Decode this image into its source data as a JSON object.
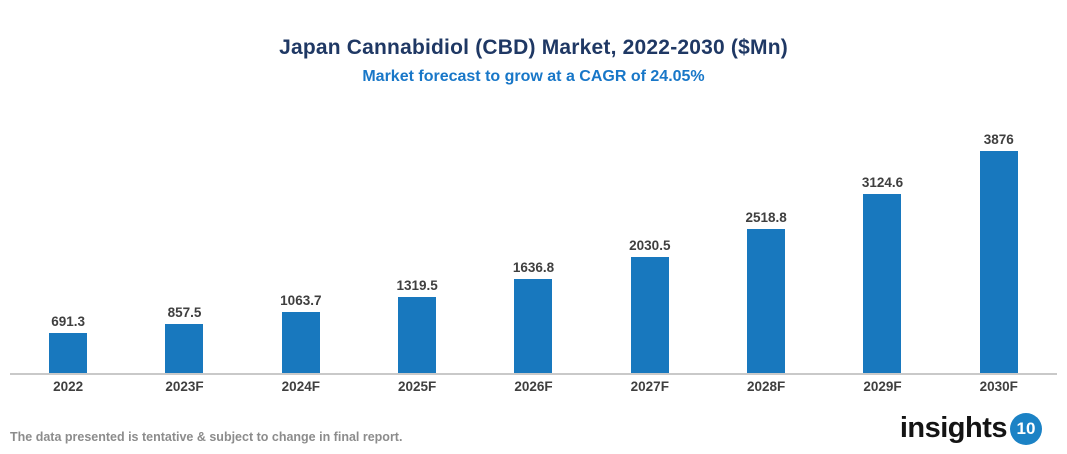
{
  "header": {
    "title": "Japan Cannabidiol (CBD) Market, 2022-2030 ($Mn)",
    "subtitle": "Market forecast to grow at a CAGR of 24.05%"
  },
  "chart_data": {
    "type": "bar",
    "categories": [
      "2022",
      "2023F",
      "2024F",
      "2025F",
      "2026F",
      "2027F",
      "2028F",
      "2029F",
      "2030F"
    ],
    "values": [
      691.3,
      857.5,
      1063.7,
      1319.5,
      1636.8,
      2030.5,
      2518.8,
      3124.6,
      3876
    ],
    "title": "Japan Cannabidiol (CBD) Market, 2022-2030 ($Mn)",
    "subtitle": "Market forecast to grow at a CAGR of 24.05%",
    "xlabel": "",
    "ylabel": "",
    "ylim": [
      0,
      3876
    ],
    "grid": false,
    "legend": false,
    "data_labels": true,
    "bar_color": "#1878be"
  },
  "footer": {
    "disclaimer": "The data presented is tentative & subject to change in final report.",
    "logo_word": "insights",
    "logo_badge": "10"
  },
  "colors": {
    "title": "#1f3864",
    "subtitle": "#1877c8",
    "bar": "#1878be",
    "labels": "#3f3f3f",
    "axis_line": "#c9c9c9",
    "disclaimer": "#8c8c8c",
    "logo_badge_bg": "#1b82c5"
  }
}
